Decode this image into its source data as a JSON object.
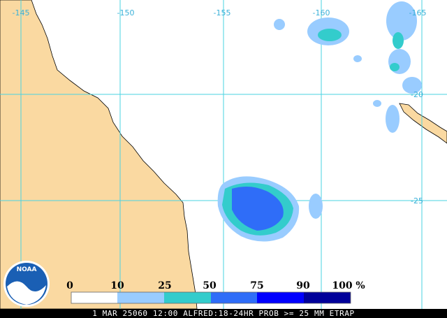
{
  "grid_labels": {
    "longitude": [
      "-145",
      "-150",
      "-155",
      "-160",
      "-165"
    ],
    "latitude": [
      "-20",
      "-25"
    ]
  },
  "legend": {
    "labels": [
      "0",
      "10",
      "25",
      "50",
      "75",
      "90",
      "100"
    ],
    "unit": "%"
  },
  "footer": "1 MAR 25060 12:00 ALFRED:18-24HR PROB >= 25 MM ETRAP",
  "logo": "NOAA"
}
